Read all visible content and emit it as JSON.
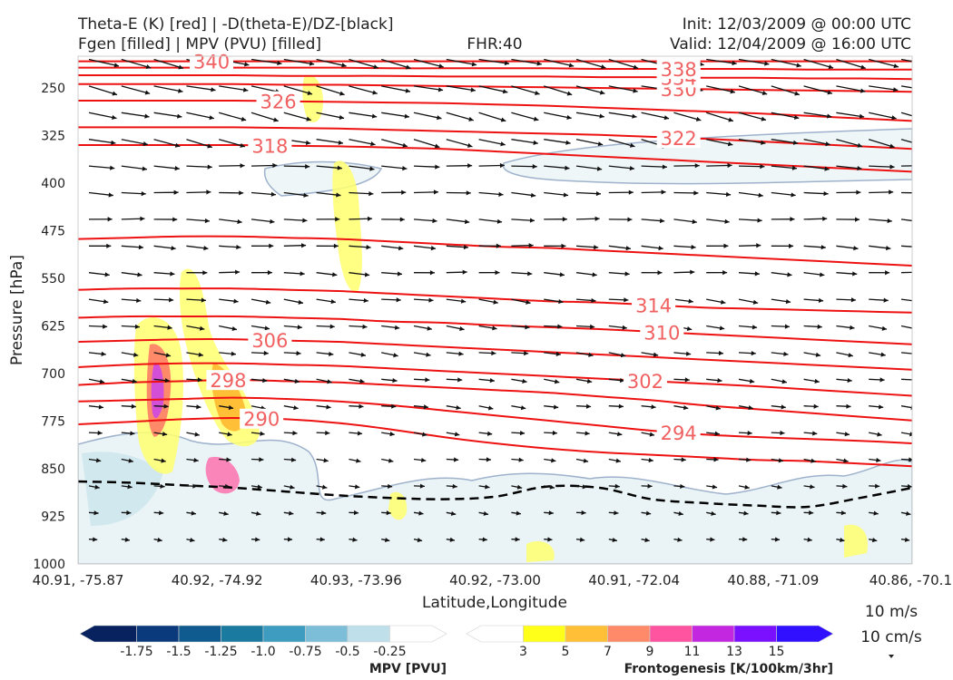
{
  "header": {
    "title_left_line1": "Theta-E (K) [red] | -D(theta-E)/DZ-[black]",
    "title_left_line2": "Fgen [filled] | MPV (PVU) [filled]",
    "title_center": "FHR:40",
    "title_right_line1": "Init: 12/03/2009 @ 00:00 UTC",
    "title_right_line2": "Valid: 12/04/2009 @ 16:00 UTC"
  },
  "chart_data": {
    "type": "cross-section",
    "xlabel": "Latitude,Longitude",
    "ylabel": "Pressure [hPa]",
    "ylim": [
      1000,
      200
    ],
    "x_ticks": [
      "40.91, -75.87",
      "40.92, -74.92",
      "40.93, -73.96",
      "40.92, -73.00",
      "40.91, -72.04",
      "40.88, -71.09",
      "40.86, -70.1"
    ],
    "y_ticks": [
      250,
      325,
      400,
      475,
      550,
      625,
      700,
      775,
      850,
      925,
      1000
    ],
    "theta_e_color": "#ee1111",
    "theta_e_contours": [
      {
        "label": "290",
        "p": [
          780,
          776,
          772,
          770,
          772,
          778,
          788,
          800,
          810,
          818,
          824,
          828,
          832,
          836,
          838,
          842,
          846
        ]
      },
      {
        "label": "294",
        "p": [
          744,
          742,
          740,
          738,
          740,
          744,
          750,
          758,
          766,
          774,
          782,
          790,
          796,
          800,
          803,
          806,
          810
        ]
      },
      {
        "label": "298",
        "p": [
          718,
          714,
          712,
          710,
          712,
          714,
          718,
          722,
          726,
          730,
          736,
          742,
          750,
          756,
          762,
          768,
          774
        ]
      },
      {
        "label": "302",
        "p": [
          690,
          686,
          684,
          684,
          686,
          688,
          692,
          696,
          700,
          704,
          708,
          712,
          716,
          720,
          725,
          730,
          735
        ]
      },
      {
        "label": "306",
        "p": [
          650,
          648,
          646,
          646,
          648,
          650,
          654,
          658,
          662,
          666,
          670,
          674,
          678,
          682,
          686,
          690,
          694
        ]
      },
      {
        "label": "310",
        "p": [
          612,
          610,
          610,
          610,
          612,
          614,
          618,
          620,
          624,
          627,
          630,
          634,
          638,
          642,
          646,
          650,
          654
        ]
      },
      {
        "label": "314",
        "p": [
          568,
          566,
          566,
          566,
          568,
          570,
          574,
          578,
          582,
          586,
          588,
          592,
          596,
          598,
          600,
          602,
          604
        ]
      },
      {
        "label": "",
        "p": [
          488,
          486,
          484,
          484,
          486,
          488,
          492,
          496,
          500,
          502,
          506,
          510,
          514,
          518,
          522,
          526,
          530
        ]
      },
      {
        "label": "318",
        "p": [
          340,
          340,
          340,
          340,
          341,
          342,
          344,
          346,
          350,
          354,
          358,
          362,
          366,
          370,
          374,
          378,
          382
        ]
      },
      {
        "label": "322",
        "p": [
          312,
          312,
          312,
          312,
          313,
          314,
          316,
          318,
          320,
          322,
          324,
          327,
          330,
          334,
          338,
          342,
          346
        ]
      },
      {
        "label": "326",
        "p": [
          270,
          270,
          270,
          270,
          271,
          272,
          273,
          274,
          276,
          278,
          281,
          284,
          287,
          290,
          294,
          298,
          302
        ]
      },
      {
        "label": "330",
        "p": [
          244,
          244,
          244,
          244,
          245,
          245,
          246,
          247,
          248,
          249,
          250,
          251,
          252,
          253,
          254,
          255,
          256
        ]
      },
      {
        "label": "334",
        "p": [
          230,
          230,
          230,
          230,
          231,
          231,
          231,
          232,
          232,
          232,
          233,
          233,
          234,
          234,
          235,
          235,
          236
        ]
      },
      {
        "label": "338",
        "p": [
          218,
          218,
          218,
          218,
          218,
          218,
          219,
          219,
          219,
          219,
          220,
          220,
          220,
          220,
          221,
          221,
          221
        ]
      },
      {
        "label": "340",
        "p": [
          208,
          208,
          208,
          208,
          208,
          208,
          208,
          208,
          208,
          208,
          208,
          208,
          208,
          208,
          208,
          208,
          208
        ]
      }
    ],
    "stability_dashed_line_p": [
      870,
      872,
      876,
      880,
      886,
      892,
      896,
      898,
      894,
      878,
      880,
      898,
      904,
      908,
      910,
      896,
      880
    ],
    "wind_vector_key": {
      "speed_label": "10 m/s",
      "vertical_label": "10 cm/s"
    },
    "colorbars": [
      {
        "title": "MPV [PVU]",
        "ticks": [
          "-1.75",
          "-1.5",
          "-1.25",
          "-1.0",
          "-0.75",
          "-0.5",
          "-0.25"
        ],
        "colors": [
          "#08215f",
          "#0a3a7c",
          "#0f5a8e",
          "#1b7aa0",
          "#3d9cc0",
          "#7cbdd7",
          "#bfdfea",
          "#ffffff"
        ]
      },
      {
        "title": "Frontogenesis [K/100km/3hr]",
        "ticks": [
          "3",
          "5",
          "7",
          "9",
          "11",
          "13",
          "15"
        ],
        "colors": [
          "#ffffff",
          "#ffff1a",
          "#ffc038",
          "#ff8a6a",
          "#ff55a0",
          "#c427e0",
          "#7a10ff",
          "#3010ff"
        ]
      }
    ]
  }
}
